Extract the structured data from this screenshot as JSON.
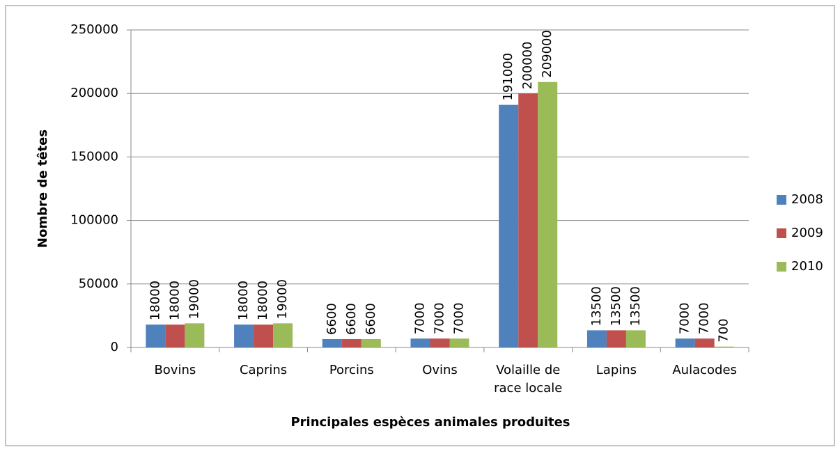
{
  "chart_data": {
    "type": "bar",
    "x_label": "Principales espèces animales produites",
    "y_label": "Nombre de têtes",
    "categories": [
      "Bovins",
      "Caprins",
      "Porcins",
      "Ovins",
      "Volaille de race locale",
      "Lapins",
      "Aulacodes"
    ],
    "series": [
      {
        "name": "2008",
        "color": "#4f81bd",
        "values": [
          18000,
          18000,
          6600,
          7000,
          191000,
          13500,
          7000
        ]
      },
      {
        "name": "2009",
        "color": "#c0504d",
        "values": [
          18000,
          18000,
          6600,
          7000,
          200000,
          13500,
          7000
        ]
      },
      {
        "name": "2010",
        "color": "#9bbb59",
        "values": [
          19000,
          19000,
          6600,
          7000,
          209000,
          13500,
          700
        ]
      }
    ],
    "ylim": [
      0,
      250000
    ],
    "yticks": [
      0,
      50000,
      100000,
      150000,
      200000,
      250000
    ],
    "grid": true,
    "legend": "right"
  }
}
